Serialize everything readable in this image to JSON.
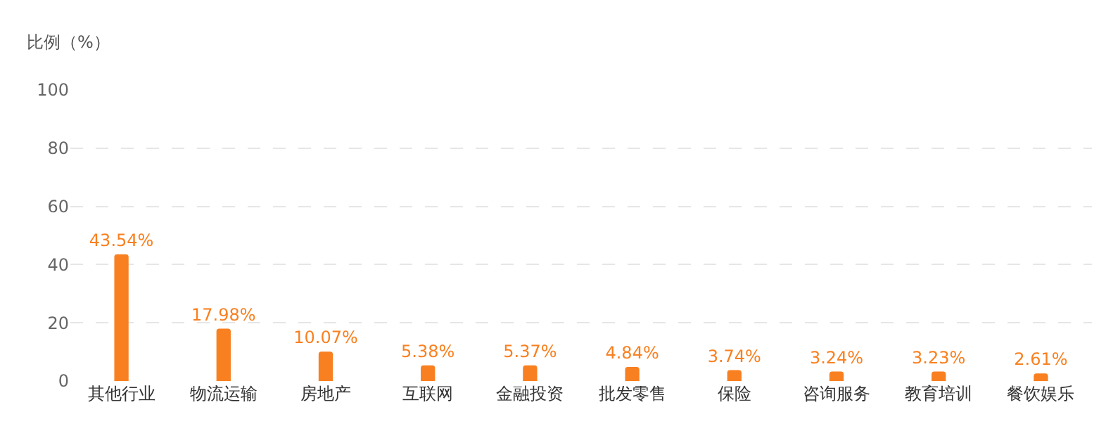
{
  "chart_data": {
    "type": "bar",
    "ylabel": "比例（%）",
    "categories": [
      "其他行业",
      "物流运输",
      "房地产",
      "互联网",
      "金融投资",
      "批发零售",
      "保险",
      "咨询服务",
      "教育培训",
      "餐饮娱乐"
    ],
    "values": [
      43.54,
      17.98,
      10.07,
      5.38,
      5.37,
      4.84,
      3.74,
      3.24,
      3.23,
      2.61
    ],
    "value_labels": [
      "43.54%",
      "17.98%",
      "10.07%",
      "5.38%",
      "5.37%",
      "4.84%",
      "3.74%",
      "3.24%",
      "3.23%",
      "2.61%"
    ],
    "color": "#f98020",
    "ylim": [
      0,
      100
    ],
    "yticks": [
      0,
      20,
      40,
      60,
      80,
      100
    ],
    "grid": "y"
  }
}
